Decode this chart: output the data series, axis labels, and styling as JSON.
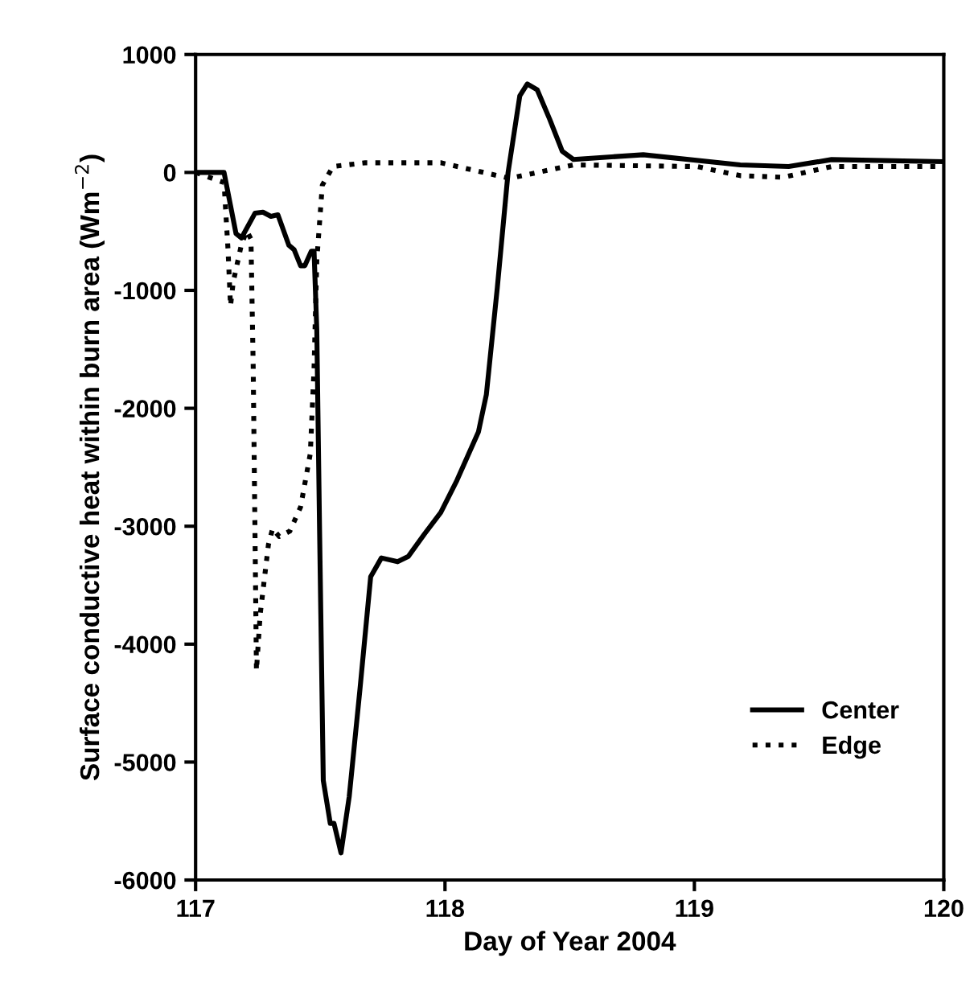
{
  "chart_data": {
    "type": "line",
    "xlabel": "Day of Year 2004",
    "ylabel": "Surface conductive heat within burn area (Wm$^{−2}$)",
    "xlim": [
      117,
      120
    ],
    "xticks": [
      117,
      118,
      119,
      120
    ],
    "ylim": [
      -6000,
      1000
    ],
    "yticks": [
      -6000,
      -5000,
      -4000,
      -3000,
      -2000,
      -1000,
      0,
      1000
    ],
    "grid": false,
    "legend": "bottom right",
    "marker": "none",
    "series": [
      {
        "name": "Center",
        "color": "#000000",
        "line_style": "solid",
        "x": [
          117,
          117.114,
          117.162,
          117.184,
          117.238,
          117.27,
          117.302,
          117.33,
          117.374,
          117.395,
          117.421,
          117.438,
          117.464,
          117.475,
          117.486,
          117.497,
          117.512,
          117.54,
          117.555,
          117.583,
          117.616,
          117.659,
          117.702,
          117.745,
          117.81,
          117.853,
          117.918,
          117.983,
          118.048,
          118.091,
          118.134,
          118.166,
          118.21,
          118.253,
          118.3,
          118.33,
          118.37,
          118.42,
          118.47,
          118.515,
          118.795,
          119.184,
          119.378,
          119.55,
          120
        ],
        "values": [
          0,
          0,
          -518,
          -555,
          -346,
          -337,
          -373,
          -359,
          -618,
          -655,
          -791,
          -791,
          -668,
          -668,
          -1337,
          -3019,
          -5156,
          -5520,
          -5520,
          -5770,
          -5293,
          -4383,
          -3428,
          -3269,
          -3301,
          -3256,
          -3065,
          -2883,
          -2610,
          -2405,
          -2201,
          -1882,
          -973,
          0,
          650,
          750,
          700,
          450,
          180,
          110,
          150,
          64,
          50,
          109,
          91
        ]
      },
      {
        "name": "Edge",
        "color": "#000000",
        "line_style": "dotted",
        "x": [
          117,
          117.114,
          117.13,
          117.14,
          117.151,
          117.184,
          117.205,
          117.222,
          117.231,
          117.238,
          117.244,
          117.259,
          117.292,
          117.309,
          117.335,
          117.378,
          117.421,
          117.46,
          117.475,
          117.486,
          117.508,
          117.551,
          117.68,
          117.983,
          118.24,
          118.28,
          118.515,
          119.01,
          119.184,
          119.357,
          119.55,
          120
        ],
        "values": [
          0,
          -86,
          -655,
          -1132,
          -928,
          -609,
          -496,
          -564,
          -1655,
          -3019,
          -4224,
          -3747,
          -3156,
          -3019,
          -3087,
          -3042,
          -2837,
          -2383,
          -1655,
          -746,
          -109,
          50,
          82,
          82,
          -41,
          -41,
          64,
          50,
          -27,
          -41,
          50,
          50
        ]
      }
    ]
  }
}
